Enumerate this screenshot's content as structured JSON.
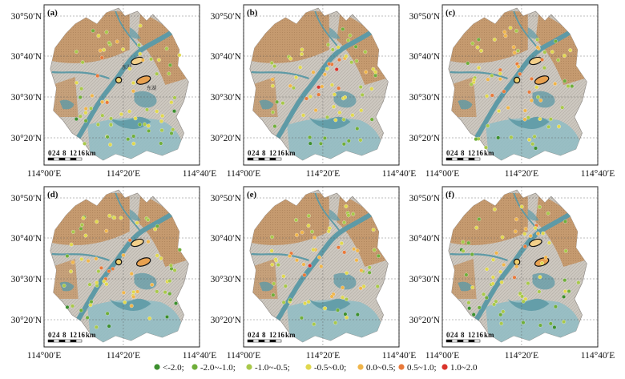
{
  "axes": {
    "y_ticks": [
      "30°50′N",
      "30°40′N",
      "30°30′N",
      "30°20′N"
    ],
    "x_ticks": [
      "114°00′E",
      "114°20′E",
      "114°40′E"
    ]
  },
  "scalebar": {
    "ticks": [
      "0",
      "2",
      "4",
      "8",
      "12",
      "16"
    ],
    "unit": "km"
  },
  "panels": [
    {
      "label": "(a)",
      "highlight_lakes": true,
      "annotations": [
        "东湖",
        "东湖"
      ],
      "point_seed": 11
    },
    {
      "label": "(b)",
      "highlight_lakes": false,
      "annotations": [],
      "point_seed": 23
    },
    {
      "label": "(c)",
      "highlight_lakes": true,
      "annotations": [],
      "point_seed": 37
    },
    {
      "label": "(d)",
      "highlight_lakes": true,
      "annotations": [],
      "point_seed": 41
    },
    {
      "label": "(e)",
      "highlight_lakes": false,
      "annotations": [],
      "point_seed": 53
    },
    {
      "label": "(f)",
      "highlight_lakes": true,
      "annotations": [],
      "point_seed": 67
    }
  ],
  "legend": [
    {
      "label": "<-2.0;",
      "color": "#3c8f2e"
    },
    {
      "label": "-2.0~-1.0;",
      "color": "#6fae3a"
    },
    {
      "label": "-1.0~-0.5;",
      "color": "#a8c84a"
    },
    {
      "label": "-0.5~0.0;",
      "color": "#e0d84e"
    },
    {
      "label": "0.0~0.5;",
      "color": "#f0b54a"
    },
    {
      "label": "0.5~1.0;",
      "color": "#e8793a"
    },
    {
      "label": "1.0~2.0",
      "color": "#d9332b"
    }
  ],
  "colors": {
    "land_brown": "#c9a27a",
    "land_grey": "#b7b2ab",
    "urban": "#d8d3cc",
    "water": "#5e9aa6",
    "water_light": "#8fbcc4",
    "lake_ring": "#111111"
  }
}
